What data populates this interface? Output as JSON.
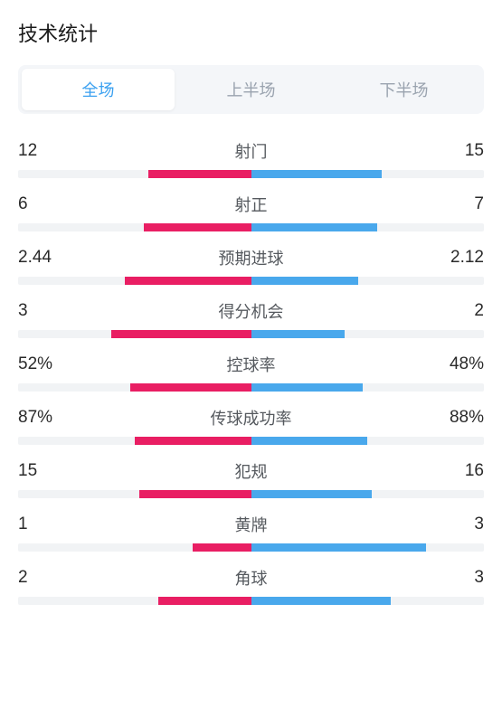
{
  "title": "技术统计",
  "tabs": [
    {
      "label": "全场",
      "active": true
    },
    {
      "label": "上半场",
      "active": false
    },
    {
      "label": "下半场",
      "active": false
    }
  ],
  "colors": {
    "left_bar": "#e91e63",
    "right_bar": "#49a8ec",
    "bar_bg": "#f1f3f5",
    "tab_bg": "#f4f6f9",
    "tab_active_text": "#3aa0f0",
    "tab_inactive_text": "#9aa3af"
  },
  "stats": [
    {
      "label": "射门",
      "left_value": "12",
      "right_value": "15",
      "left_pct": 44,
      "right_pct": 56
    },
    {
      "label": "射正",
      "left_value": "6",
      "right_value": "7",
      "left_pct": 46,
      "right_pct": 54
    },
    {
      "label": "预期进球",
      "left_value": "2.44",
      "right_value": "2.12",
      "left_pct": 54,
      "right_pct": 46
    },
    {
      "label": "得分机会",
      "left_value": "3",
      "right_value": "2",
      "left_pct": 60,
      "right_pct": 40
    },
    {
      "label": "控球率",
      "left_value": "52%",
      "right_value": "48%",
      "left_pct": 52,
      "right_pct": 48
    },
    {
      "label": "传球成功率",
      "left_value": "87%",
      "right_value": "88%",
      "left_pct": 50,
      "right_pct": 50
    },
    {
      "label": "犯规",
      "left_value": "15",
      "right_value": "16",
      "left_pct": 48,
      "right_pct": 52
    },
    {
      "label": "黄牌",
      "left_value": "1",
      "right_value": "3",
      "left_pct": 25,
      "right_pct": 75
    },
    {
      "label": "角球",
      "left_value": "2",
      "right_value": "3",
      "left_pct": 40,
      "right_pct": 60
    }
  ]
}
